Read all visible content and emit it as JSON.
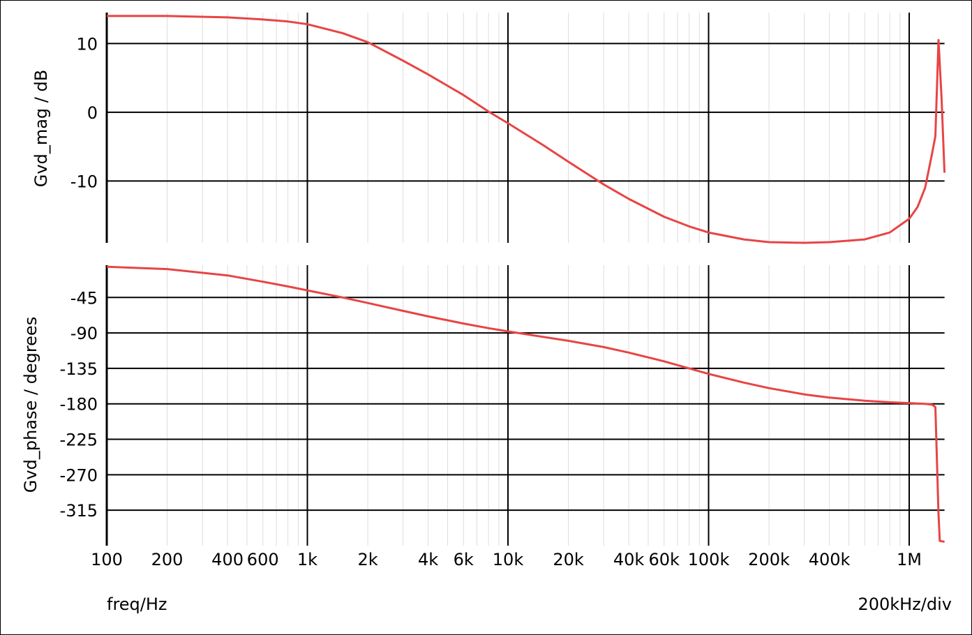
{
  "chart_data": [
    {
      "type": "line",
      "x_scale": "log",
      "xlim": [
        100,
        1500000
      ],
      "ylabel": "Gvd_mag / dB",
      "ylim": [
        -19,
        14.5
      ],
      "yticks": [
        10,
        0,
        -10
      ],
      "grid": true,
      "series": [
        {
          "color": "#e84444",
          "x": [
            100,
            200,
            400,
            600,
            800,
            1000,
            1500,
            2000,
            3000,
            4000,
            6000,
            8000,
            10000,
            15000,
            20000,
            30000,
            40000,
            60000,
            80000,
            100000,
            150000,
            200000,
            300000,
            400000,
            600000,
            800000,
            1000000,
            1100000,
            1200000,
            1300000,
            1350000,
            1400000,
            1450000,
            1500000
          ],
          "y": [
            14,
            14,
            13.8,
            13.5,
            13.2,
            12.8,
            11.5,
            10.2,
            7.5,
            5.5,
            2.5,
            0.1,
            -1.6,
            -4.8,
            -7.2,
            -10.5,
            -12.6,
            -15.2,
            -16.6,
            -17.5,
            -18.5,
            -18.9,
            -19,
            -18.9,
            -18.5,
            -17.5,
            -15.5,
            -13.8,
            -11,
            -6,
            -3.5,
            10.5,
            2,
            -8.8
          ]
        }
      ]
    },
    {
      "type": "line",
      "x_scale": "log",
      "xlim": [
        100,
        1500000
      ],
      "ylabel": "Gvd_phase / degrees",
      "ylim": [
        -360,
        -4
      ],
      "yticks": [
        -45,
        -90,
        -135,
        -180,
        -225,
        -270,
        -315
      ],
      "grid": true,
      "series": [
        {
          "color": "#e84444",
          "x": [
            100,
            200,
            400,
            600,
            800,
            1000,
            1500,
            2000,
            3000,
            4000,
            6000,
            8000,
            10000,
            15000,
            20000,
            30000,
            40000,
            60000,
            80000,
            100000,
            150000,
            200000,
            300000,
            400000,
            600000,
            800000,
            1000000,
            1200000,
            1300000,
            1350000,
            1400000,
            1420000,
            1500000
          ],
          "y": [
            -6,
            -9,
            -17,
            -25,
            -31,
            -36,
            -45,
            -52,
            -62,
            -69,
            -78,
            -84,
            -88,
            -95,
            -100,
            -108,
            -115,
            -126,
            -135,
            -142,
            -153,
            -160,
            -168,
            -172,
            -176,
            -178,
            -179,
            -180,
            -181,
            -184,
            -320,
            -354,
            -355
          ]
        }
      ]
    }
  ],
  "x_axis": {
    "label": "freq/Hz",
    "right_note": "200kHz/div",
    "ticks": [
      {
        "value": 100,
        "label": "100"
      },
      {
        "value": 200,
        "label": "200"
      },
      {
        "value": 400,
        "label": "400"
      },
      {
        "value": 600,
        "label": "600"
      },
      {
        "value": 1000,
        "label": "1k"
      },
      {
        "value": 2000,
        "label": "2k"
      },
      {
        "value": 4000,
        "label": "4k"
      },
      {
        "value": 6000,
        "label": "6k"
      },
      {
        "value": 10000,
        "label": "10k"
      },
      {
        "value": 20000,
        "label": "20k"
      },
      {
        "value": 40000,
        "label": "40k"
      },
      {
        "value": 60000,
        "label": "60k"
      },
      {
        "value": 100000,
        "label": "100k"
      },
      {
        "value": 200000,
        "label": "200k"
      },
      {
        "value": 400000,
        "label": "400k"
      },
      {
        "value": 1000000,
        "label": "1M"
      }
    ]
  },
  "colors": {
    "trace": "#e84444",
    "major_grid": "#000000",
    "minor_grid": "#dddddd"
  }
}
